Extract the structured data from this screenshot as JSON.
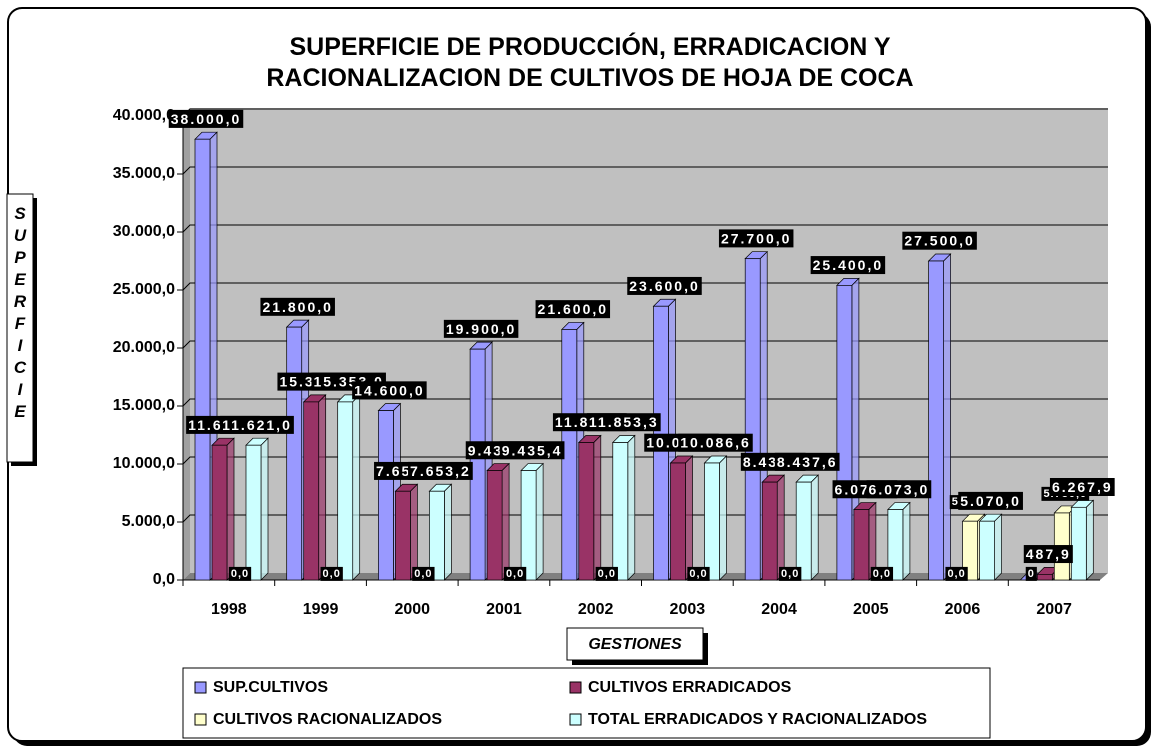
{
  "chart_data": {
    "type": "bar3d",
    "title": "SUPERFICIE DE PRODUCCIÓN, ERRADICACION Y RACIONALIZACION DE CULTIVOS DE HOJA DE COCA",
    "x_label": "GESTIONES",
    "y_label": "SUPERFICIE",
    "categories": [
      "1998",
      "1999",
      "2000",
      "2001",
      "2002",
      "2003",
      "2004",
      "2005",
      "2006",
      "2007"
    ],
    "series": [
      {
        "name": "SUP.CULTIVOS",
        "color": "#9999ff",
        "values": [
          38000,
          21800,
          14600,
          19900,
          21600,
          23600,
          27700,
          25400,
          27500,
          0
        ],
        "value_labels": [
          "38.000,0",
          "21.800,0",
          "14.600,0",
          "19.900,0",
          "21.600,0",
          "23.600,0",
          "27.700,0",
          "25.400,0",
          "27.500,0",
          "0"
        ]
      },
      {
        "name": "CULTIVOS ERRADICADOS",
        "color": "#993366",
        "values": [
          11621,
          15353,
          7653.2,
          9435.4,
          11853.3,
          10086.6,
          8437.6,
          6073,
          0,
          487.9
        ],
        "value_labels": [
          "11.621,0",
          "15.353,0",
          "7.653,2",
          "9.435,4",
          "11.853,3",
          "10.086,6",
          "8.437,6",
          "6.073,0",
          "0,0",
          "487,9"
        ]
      },
      {
        "name": "CULTIVOS RACIONALIZADOS",
        "color": "#ffffcc",
        "values": [
          0,
          0,
          0,
          0,
          0,
          0,
          0,
          0,
          5070,
          5780
        ],
        "value_labels": [
          "0,0",
          "0,0",
          "0,0",
          "0,0",
          "0,0",
          "0,0",
          "0,0",
          "0,0",
          "5.070,0",
          "5.780,0"
        ]
      },
      {
        "name": "TOTAL ERRADICADOS Y RACIONALIZADOS",
        "color": "#ccffff",
        "values": [
          11621,
          15353,
          7653.2,
          9435.4,
          11853.3,
          10086.6,
          8437.6,
          6073,
          5070,
          6267.9
        ],
        "value_labels": [
          "11.621,0",
          "15.353,0",
          "7.653,2",
          "9.435,4",
          "11.853,3",
          "10.086,6",
          "8.437,6",
          "6.073,0",
          "5.070,0",
          "6.267,9"
        ]
      }
    ],
    "ylim": [
      0,
      40000
    ],
    "yticks": [
      {
        "value": 0,
        "label": "0,0"
      },
      {
        "value": 5000,
        "label": "5.000,0"
      },
      {
        "value": 10000,
        "label": "10.000,0"
      },
      {
        "value": 15000,
        "label": "15.000,0"
      },
      {
        "value": 20000,
        "label": "20.000,0"
      },
      {
        "value": 25000,
        "label": "25.000,0"
      },
      {
        "value": 30000,
        "label": "30.000,0"
      },
      {
        "value": 35000,
        "label": "35.000,0"
      },
      {
        "value": 40000,
        "label": "40.000,0"
      }
    ],
    "grid": true,
    "legend": "bottom"
  }
}
